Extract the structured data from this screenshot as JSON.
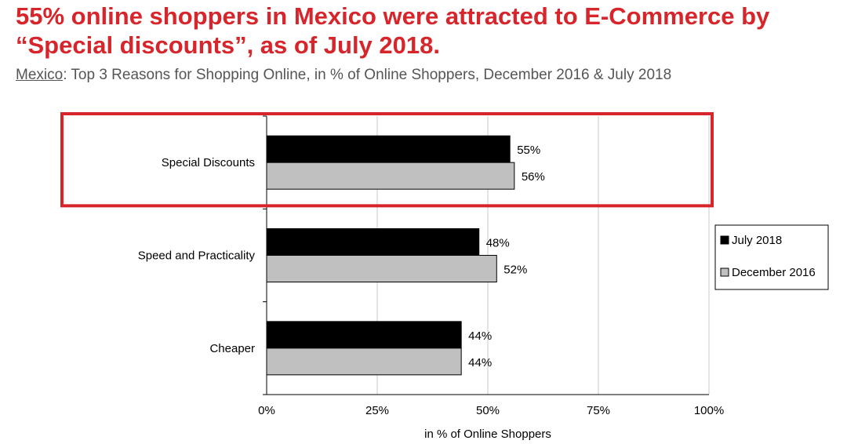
{
  "header": {
    "headline": "55% online shoppers in Mexico were attracted to E-Commerce by “Special discounts”, as of July 2018.",
    "subtitle_region": "Mexico",
    "subtitle_text": ": Top 3 Reasons for Shopping Online, in % of Online Shoppers, December 2016 & July 2018"
  },
  "colors": {
    "headline": "#d7262b",
    "highlight_box": "#d7262b",
    "july_2018": "#000000",
    "december_2016": "#c0c0c0"
  },
  "chart_data": {
    "type": "bar",
    "orientation": "horizontal",
    "categories": [
      "Special Discounts",
      "Speed and Practicality",
      "Cheaper"
    ],
    "series": [
      {
        "name": "July 2018",
        "values": [
          55,
          48,
          44
        ],
        "labels": [
          "55%",
          "48%",
          "44%"
        ]
      },
      {
        "name": "December 2016",
        "values": [
          56,
          52,
          44
        ],
        "labels": [
          "56%",
          "52%",
          "44%"
        ]
      }
    ],
    "xlabel": "in % of Online Shoppers",
    "xlim": [
      0,
      100
    ],
    "xticks": [
      "0%",
      "25%",
      "50%",
      "75%",
      "100%"
    ],
    "grid": "vertical",
    "legend_position": "right",
    "highlighted_category": "Special Discounts"
  }
}
